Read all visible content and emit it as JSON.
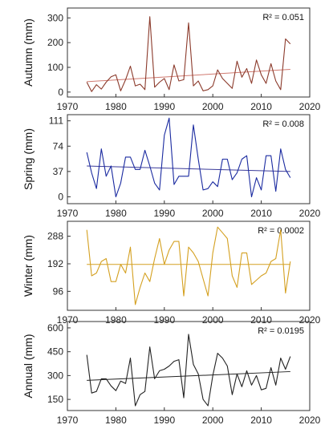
{
  "chart_data": [
    {
      "type": "line",
      "ylabel": "Autumn (mm)",
      "annotation": "R² = 0.051",
      "xlim": [
        1970,
        2020
      ],
      "ylim": [
        -20,
        340
      ],
      "yticks": [
        0,
        100,
        200,
        300
      ],
      "xticks": [
        1970,
        1980,
        1990,
        2000,
        2010,
        2020
      ],
      "color": "#8b3a2b",
      "trend_color": "#d07a70",
      "trend": [
        [
          1974,
          42
        ],
        [
          2016,
          92
        ]
      ],
      "x": [
        1974,
        1975,
        1976,
        1977,
        1978,
        1979,
        1980,
        1981,
        1982,
        1983,
        1984,
        1985,
        1986,
        1987,
        1988,
        1989,
        1990,
        1991,
        1992,
        1993,
        1994,
        1995,
        1996,
        1997,
        1998,
        1999,
        2000,
        2001,
        2002,
        2003,
        2004,
        2005,
        2006,
        2007,
        2008,
        2009,
        2010,
        2011,
        2012,
        2013,
        2014,
        2015,
        2016
      ],
      "y": [
        40,
        2,
        30,
        12,
        40,
        62,
        70,
        5,
        50,
        105,
        25,
        32,
        10,
        305,
        20,
        40,
        55,
        10,
        110,
        45,
        50,
        280,
        25,
        45,
        5,
        10,
        25,
        90,
        55,
        35,
        15,
        125,
        60,
        95,
        35,
        130,
        70,
        35,
        115,
        45,
        10,
        215,
        195
      ]
    },
    {
      "type": "line",
      "ylabel": "Spring (mm)",
      "annotation": "R² = 0.008",
      "xlim": [
        1970,
        2020
      ],
      "ylim": [
        -10,
        120
      ],
      "yticks": [
        0,
        37,
        74,
        111
      ],
      "xticks": [
        1970,
        1980,
        1990,
        2000,
        2010,
        2020
      ],
      "color": "#1a2aa0",
      "trend_color": "#3b3b9a",
      "trend": [
        [
          1974,
          45
        ],
        [
          2016,
          37
        ]
      ],
      "x": [
        1974,
        1975,
        1976,
        1977,
        1978,
        1979,
        1980,
        1981,
        1982,
        1983,
        1984,
        1985,
        1986,
        1987,
        1988,
        1989,
        1990,
        1991,
        1992,
        1993,
        1994,
        1995,
        1996,
        1997,
        1998,
        1999,
        2000,
        2001,
        2002,
        2003,
        2004,
        2005,
        2006,
        2007,
        2008,
        2009,
        2010,
        2011,
        2012,
        2013,
        2014,
        2015,
        2016
      ],
      "y": [
        65,
        35,
        12,
        70,
        30,
        45,
        0,
        20,
        58,
        58,
        40,
        40,
        68,
        45,
        20,
        10,
        90,
        115,
        18,
        30,
        30,
        30,
        105,
        55,
        10,
        12,
        22,
        15,
        55,
        55,
        25,
        35,
        55,
        60,
        0,
        28,
        10,
        60,
        60,
        8,
        70,
        40,
        28
      ]
    },
    {
      "type": "line",
      "ylabel": "Winter (mm)",
      "annotation": "R² = 0.0002",
      "xlim": [
        1970,
        2020
      ],
      "ylim": [
        30,
        340
      ],
      "yticks": [
        96,
        192,
        288
      ],
      "xticks": [
        1970,
        1980,
        1990,
        2000,
        2010,
        2020
      ],
      "color": "#d4a020",
      "trend_color": "#d4a020",
      "trend": [
        [
          1974,
          190
        ],
        [
          2016,
          190
        ]
      ],
      "x": [
        1974,
        1975,
        1976,
        1977,
        1978,
        1979,
        1980,
        1981,
        1982,
        1983,
        1984,
        1985,
        1986,
        1987,
        1988,
        1989,
        1990,
        1991,
        1992,
        1993,
        1994,
        1995,
        1996,
        1997,
        1998,
        1999,
        2000,
        2001,
        2002,
        2003,
        2004,
        2005,
        2006,
        2007,
        2008,
        2009,
        2010,
        2011,
        2012,
        2013,
        2014,
        2015,
        2016
      ],
      "y": [
        310,
        150,
        160,
        200,
        210,
        130,
        130,
        190,
        160,
        250,
        50,
        110,
        160,
        130,
        210,
        280,
        190,
        240,
        270,
        270,
        80,
        250,
        230,
        200,
        140,
        80,
        230,
        320,
        300,
        280,
        150,
        110,
        230,
        230,
        120,
        135,
        150,
        160,
        200,
        210,
        310,
        90,
        200
      ]
    },
    {
      "type": "line",
      "ylabel": "Annual (mm)",
      "annotation": "R² = 0.0195",
      "xlim": [
        1970,
        2020
      ],
      "ylim": [
        80,
        640
      ],
      "yticks": [
        150,
        300,
        450,
        600
      ],
      "xticks": [
        1970,
        1980,
        1990,
        2000,
        2010,
        2020
      ],
      "color": "#222222",
      "trend_color": "#222222",
      "trend": [
        [
          1974,
          270
        ],
        [
          2016,
          325
        ]
      ],
      "x": [
        1974,
        1975,
        1976,
        1977,
        1978,
        1979,
        1980,
        1981,
        1982,
        1983,
        1984,
        1985,
        1986,
        1987,
        1988,
        1989,
        1990,
        1991,
        1992,
        1993,
        1994,
        1995,
        1996,
        1997,
        1998,
        1999,
        2000,
        2001,
        2002,
        2003,
        2004,
        2005,
        2006,
        2007,
        2008,
        2009,
        2010,
        2011,
        2012,
        2013,
        2014,
        2015,
        2016
      ],
      "y": [
        430,
        190,
        200,
        280,
        280,
        235,
        205,
        265,
        250,
        410,
        110,
        180,
        200,
        480,
        280,
        330,
        340,
        360,
        390,
        400,
        160,
        560,
        370,
        310,
        150,
        110,
        300,
        440,
        410,
        360,
        180,
        310,
        230,
        330,
        240,
        300,
        210,
        220,
        350,
        240,
        410,
        340,
        420
      ]
    }
  ]
}
